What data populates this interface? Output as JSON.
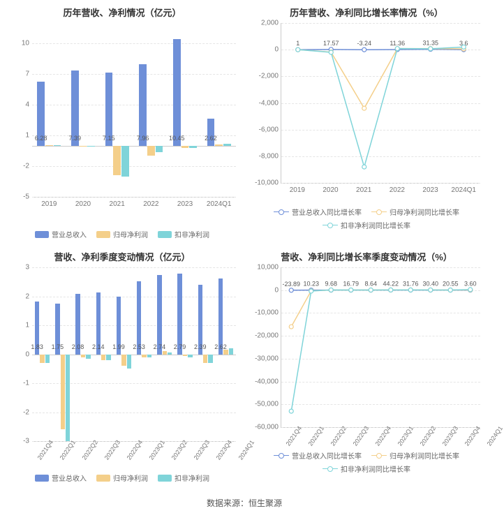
{
  "colors": {
    "series1": "#6e8fd8",
    "series2": "#f4cf8a",
    "series3": "#7fd4d9",
    "grid": "#e5e5e5",
    "axis": "#cccccc",
    "text": "#333333",
    "tick": "#777777",
    "bg": "#ffffff"
  },
  "footer": "数据来源：恒生聚源",
  "chart1": {
    "title": "历年营收、净利情况（亿元）",
    "type": "bar",
    "categories": [
      "2019",
      "2020",
      "2021",
      "2022",
      "2023",
      "2024Q1"
    ],
    "series": [
      {
        "name": "营业总收入",
        "values": [
          6.28,
          7.39,
          7.15,
          7.96,
          10.45,
          2.62
        ],
        "show_labels": [
          6.28,
          7.39,
          7.15,
          7.96,
          10.45,
          2.62
        ]
      },
      {
        "name": "归母净利润",
        "values": [
          0.05,
          -0.05,
          -2.9,
          -1.0,
          -0.2,
          0.1
        ]
      },
      {
        "name": "扣非净利润",
        "values": [
          0.05,
          -0.1,
          -3.0,
          -0.6,
          -0.2,
          0.2
        ]
      }
    ],
    "ymin": -5,
    "ymax": 12,
    "ystep": 3
  },
  "chart2": {
    "title": "历年营收、净利同比增长率情况（%）",
    "type": "line",
    "categories": [
      "2019",
      "2020",
      "2021",
      "2022",
      "2023",
      "2024Q1"
    ],
    "series": [
      {
        "name": "营业总收入同比增长率",
        "values": [
          1.0,
          17.57,
          -3.24,
          11.36,
          31.35,
          3.6
        ],
        "show_labels": [
          1.0,
          17.57,
          -3.24,
          11.36,
          31.35,
          3.6
        ]
      },
      {
        "name": "归母净利润同比增长率",
        "values": [
          0,
          -180,
          -4400,
          80,
          80,
          60
        ]
      },
      {
        "name": "扣非净利润同比增长率",
        "values": [
          0,
          -200,
          -8800,
          85,
          70,
          200
        ]
      }
    ],
    "ymin": -10000,
    "ymax": 2000,
    "ystep": 2000
  },
  "chart3": {
    "title": "营收、净利季度变动情况（亿元）",
    "type": "bar",
    "categories": [
      "2021Q4",
      "2022Q1",
      "2022Q2",
      "2022Q3",
      "2022Q4",
      "2023Q1",
      "2023Q2",
      "2023Q3",
      "2023Q4",
      "2024Q1"
    ],
    "series": [
      {
        "name": "营业总收入",
        "values": [
          1.83,
          1.75,
          2.08,
          2.14,
          1.99,
          2.53,
          2.74,
          2.79,
          2.39,
          2.62
        ],
        "show_labels": [
          1.83,
          1.75,
          2.08,
          2.14,
          1.99,
          2.53,
          2.74,
          2.79,
          2.39,
          2.62
        ]
      },
      {
        "name": "归母净利润",
        "values": [
          -0.3,
          -2.6,
          -0.1,
          -0.2,
          -0.4,
          -0.1,
          0.1,
          -0.05,
          -0.3,
          0.15
        ]
      },
      {
        "name": "扣非净利润",
        "values": [
          -0.3,
          -3.0,
          -0.15,
          -0.2,
          -0.5,
          -0.1,
          0.05,
          -0.1,
          -0.3,
          0.2
        ]
      }
    ],
    "ymin": -3,
    "ymax": 3,
    "ystep": 1
  },
  "chart4": {
    "title": "营收、净利同比增长率季度变动情况（%）",
    "type": "line",
    "categories": [
      "2021Q4",
      "2022Q1",
      "2022Q2",
      "2022Q3",
      "2022Q4",
      "2023Q1",
      "2023Q2",
      "2023Q3",
      "2023Q4",
      "2024Q1"
    ],
    "series": [
      {
        "name": "营业总收入同比增长率",
        "values": [
          -23.89,
          10.23,
          9.68,
          16.79,
          8.64,
          44.22,
          31.76,
          30.4,
          20.55,
          3.6
        ],
        "show_labels": [
          "-23.89",
          "10.23",
          "9.68",
          "16.79",
          "8.64",
          "44.22",
          "31.76",
          "30.40",
          "20.55",
          "3.60"
        ]
      },
      {
        "name": "归母净利润同比增长率",
        "values": [
          -16000,
          -300,
          80,
          70,
          60,
          95,
          100,
          90,
          60,
          120
        ]
      },
      {
        "name": "扣非净利润同比增长率",
        "values": [
          -53000,
          -400,
          85,
          75,
          65,
          96,
          98,
          88,
          55,
          250
        ]
      }
    ],
    "ymin": -60000,
    "ymax": 10000,
    "ystep": 10000
  },
  "legend_bar": [
    "营业总收入",
    "归母净利润",
    "扣非净利润"
  ],
  "legend_line": [
    "营业总收入同比增长率",
    "归母净利润同比增长率",
    "扣非净利润同比增长率"
  ]
}
